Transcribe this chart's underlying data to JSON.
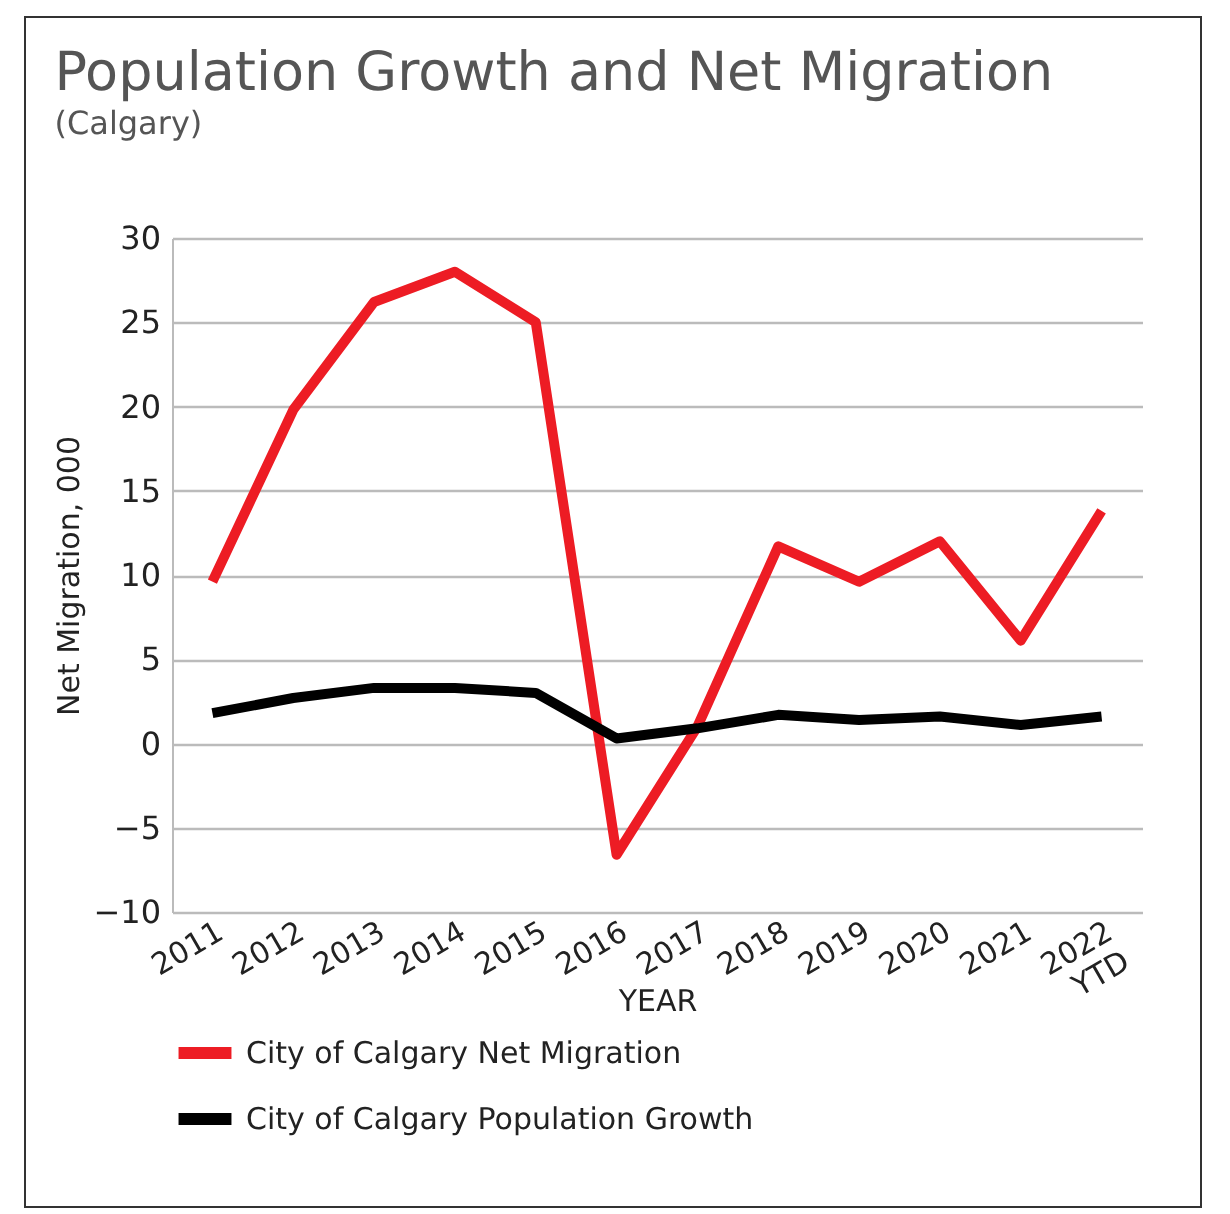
{
  "chart_data": {
    "type": "line",
    "title": "Population Growth and Net Migration",
    "subtitle": "(Calgary)",
    "xlabel": "YEAR",
    "ylabel": "Net Migration, 000",
    "categories": [
      "2011",
      "2012",
      "2013",
      "2014",
      "2015",
      "2016",
      "2017",
      "2018",
      "2019",
      "2020",
      "2021",
      "2022\nYTD"
    ],
    "series": [
      {
        "name": "City of Calgary Net Migration",
        "color": "#ed1c24",
        "values": [
          9.6,
          19.8,
          26.2,
          28,
          25,
          -6.6,
          1,
          11.7,
          9.6,
          12,
          6.1,
          13.8
        ]
      },
      {
        "name": "City of Calgary Population Growth",
        "color": "#000000",
        "values": [
          1.8,
          2.7,
          3.3,
          3.3,
          3.0,
          0.3,
          0.9,
          1.7,
          1.4,
          1.6,
          1.1,
          1.6
        ]
      }
    ],
    "ylim": [
      -10,
      30
    ],
    "yticks": [
      -10,
      -5,
      0,
      5,
      10,
      15,
      20,
      25,
      30
    ],
    "grid": "y",
    "legend": "bottom",
    "line_style": "solid"
  }
}
